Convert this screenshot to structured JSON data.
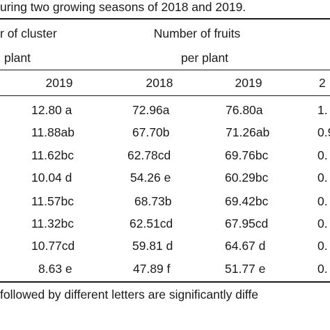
{
  "caption_top": "uring two growing seasons of 2018 and 2019.",
  "header": {
    "group1_line1": "r of cluster",
    "group1_line2": "plant",
    "group2_line1": "Number of fruits",
    "group2_line2": "per plant",
    "years": [
      "2019",
      "2018",
      "2019",
      "2"
    ]
  },
  "rows": [
    [
      "12.80 a",
      "72.96a",
      "76.80a",
      "1."
    ],
    [
      "11.88ab",
      "67.70b",
      "71.26ab",
      "0.9"
    ],
    [
      "11.62bc",
      "62.78cd",
      "69.76bc",
      "0."
    ],
    [
      "10.04 d",
      "54.26 e",
      "60.29bc",
      "0."
    ],
    [
      "11.57bc",
      "68.73b",
      "69.42bc",
      "0."
    ],
    [
      "11.32bc",
      "62.51cd",
      "67.95cd",
      "0."
    ],
    [
      "10.77cd",
      "59.81 d",
      "64.67 d",
      "0."
    ],
    [
      "8.63 e",
      "47.89 f",
      "51.77 e",
      "0."
    ]
  ],
  "footnote": "followed by different letters are significantly diffe"
}
